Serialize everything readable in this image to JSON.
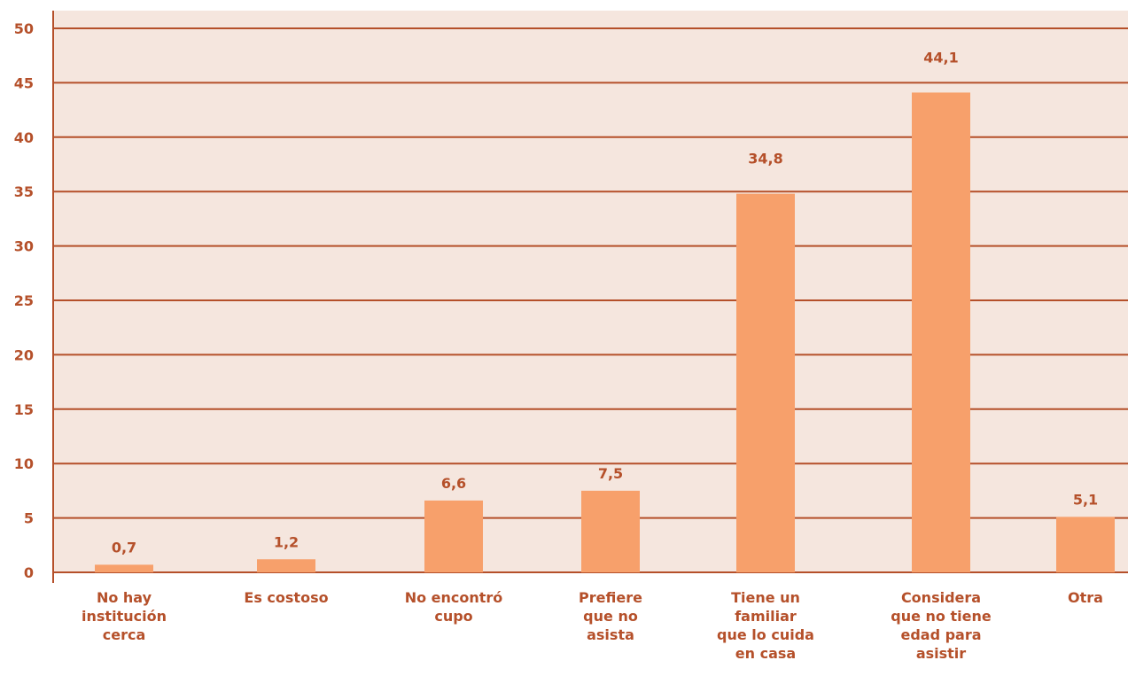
{
  "colors": {
    "plot_background": "#f5e6de",
    "bar": "#f7a06b",
    "text": "#b5502a",
    "grid": "#b5502a"
  },
  "chart_data": {
    "type": "bar",
    "title": "",
    "xlabel": "",
    "ylabel": "",
    "ylim": [
      0,
      50
    ],
    "yticks": [
      0,
      5,
      10,
      15,
      20,
      25,
      30,
      35,
      40,
      45,
      50
    ],
    "grid": true,
    "legend": "none",
    "categories": [
      [
        "No hay",
        "institución",
        "cerca"
      ],
      [
        "Es costoso"
      ],
      [
        "No encontró",
        "cupo"
      ],
      [
        "Prefiere",
        "que no",
        "asista"
      ],
      [
        "Tiene un",
        "familiar",
        "que lo cuida",
        "en casa"
      ],
      [
        "Considera",
        "que no tiene",
        "edad para",
        "asistir"
      ],
      [
        "Otra"
      ]
    ],
    "values": [
      0.7,
      1.2,
      6.6,
      7.5,
      34.8,
      44.1,
      5.1
    ],
    "value_labels": [
      "0,7",
      "1,2",
      "6,6",
      "7,5",
      "34,8",
      "44,1",
      "5,1"
    ]
  }
}
